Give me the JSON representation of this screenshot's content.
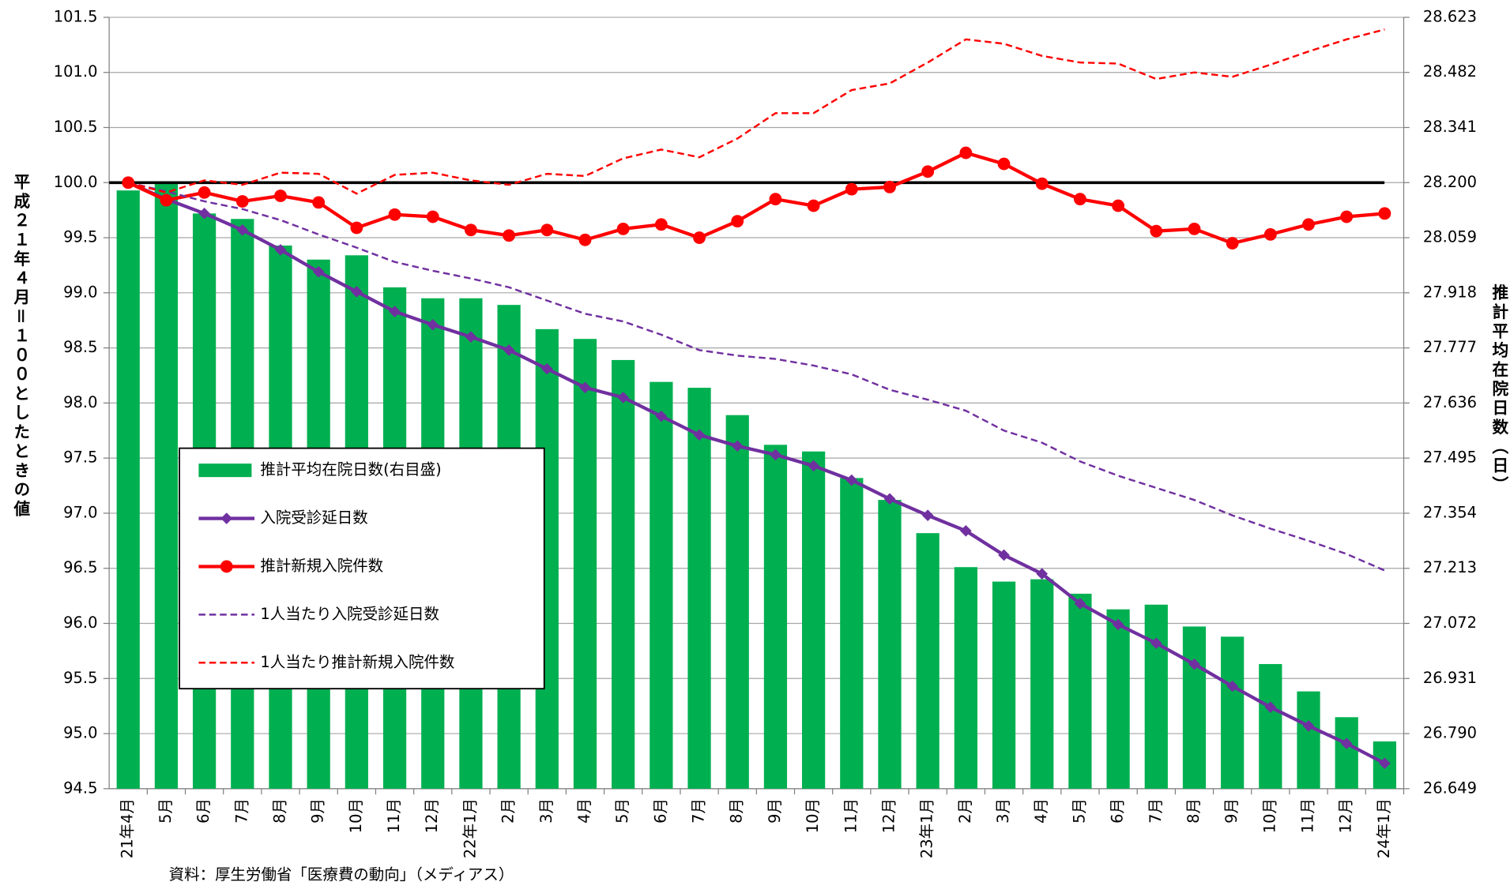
{
  "chart_data": {
    "type": "combo",
    "categories": [
      "21年4月",
      "5月",
      "6月",
      "7月",
      "8月",
      "9月",
      "10月",
      "11月",
      "12月",
      "22年1月",
      "2月",
      "3月",
      "4月",
      "5月",
      "6月",
      "7月",
      "8月",
      "9月",
      "10月",
      "11月",
      "12月",
      "23年1月",
      "2月",
      "3月",
      "4月",
      "5月",
      "6月",
      "7月",
      "8月",
      "9月",
      "10月",
      "11月",
      "12月",
      "24年1月"
    ],
    "ylabel": "平成２１年４月＝１００としたときの値",
    "y2label": "推計平均在院日数（日）",
    "note": "資料：厚生労働省「医療費の動向」（メディアス）",
    "ylim": [
      94.5,
      101.5
    ],
    "yticks": [
      94.5,
      {
        "value": 95,
        "label": "95.0"
      },
      95.5,
      {
        "value": 96,
        "label": "96.0"
      },
      96.5,
      {
        "value": 97,
        "label": "97.0"
      },
      97.5,
      {
        "value": 98,
        "label": "98.0"
      },
      98.5,
      {
        "value": 99,
        "label": "99.0"
      },
      99.5,
      {
        "value": 100,
        "label": "100.0"
      },
      100.5,
      {
        "value": 101,
        "label": "101.0"
      },
      101.5
    ],
    "y2lim": [
      26.649,
      28.623
    ],
    "y2ticks": [
      26.649,
      {
        "value": 26.79,
        "label": "26.790"
      },
      26.931,
      27.072,
      27.213,
      27.354,
      27.495,
      27.636,
      27.777,
      27.918,
      28.059,
      {
        "value": 28.2,
        "label": "28.200"
      },
      28.341,
      28.482,
      28.623
    ],
    "grid": true,
    "reference_line": 100,
    "series": [
      {
        "name": "推計平均在院日数(右目盛)",
        "type": "bar",
        "axis": "y2",
        "color": "#00b050",
        "values": [
          28.18,
          28.2,
          28.121,
          28.107,
          28.039,
          28.003,
          28.014,
          27.932,
          27.904,
          27.904,
          27.887,
          27.825,
          27.8,
          27.746,
          27.69,
          27.675,
          27.605,
          27.529,
          27.512,
          27.444,
          27.388,
          27.303,
          27.216,
          27.179,
          27.185,
          27.148,
          27.108,
          27.12,
          27.064,
          27.038,
          26.968,
          26.898,
          26.832,
          26.77
        ]
      },
      {
        "name": "入院受診延日数",
        "type": "line",
        "marker": "diamond",
        "color": "#7030a0",
        "values": [
          100.0,
          99.85,
          99.72,
          99.57,
          99.39,
          99.19,
          99.01,
          98.83,
          98.71,
          98.6,
          98.48,
          98.31,
          98.14,
          98.05,
          97.88,
          97.71,
          97.61,
          97.53,
          97.43,
          97.3,
          97.13,
          96.98,
          96.84,
          96.62,
          96.45,
          96.18,
          95.99,
          95.82,
          95.63,
          95.43,
          95.24,
          95.07,
          94.91,
          94.73
        ]
      },
      {
        "name": "推計新規入院件数",
        "type": "line",
        "marker": "circle",
        "color": "#ff0000",
        "values": [
          100.0,
          99.84,
          99.91,
          99.83,
          99.88,
          99.82,
          99.59,
          99.71,
          99.69,
          99.57,
          99.52,
          99.57,
          99.48,
          99.58,
          99.62,
          99.5,
          99.65,
          99.85,
          99.79,
          99.94,
          99.96,
          100.1,
          100.27,
          100.17,
          99.99,
          99.85,
          99.79,
          99.56,
          99.58,
          99.45,
          99.53,
          99.62,
          99.69,
          99.72
        ]
      },
      {
        "name": "1人当たり入院受診延日数",
        "type": "line",
        "dash": true,
        "color": "#7030a0",
        "values": [
          100.0,
          99.92,
          99.83,
          99.76,
          99.66,
          99.53,
          99.41,
          99.28,
          99.2,
          99.13,
          99.05,
          98.93,
          98.81,
          98.74,
          98.62,
          98.48,
          98.43,
          98.4,
          98.34,
          98.26,
          98.12,
          98.03,
          97.93,
          97.75,
          97.64,
          97.47,
          97.34,
          97.23,
          97.12,
          96.98,
          96.86,
          96.75,
          96.63,
          96.48
        ]
      },
      {
        "name": "1人当たり推計新規入院件数",
        "type": "line",
        "dash": true,
        "color": "#ff0000",
        "values": [
          100.0,
          99.91,
          100.02,
          99.98,
          100.09,
          100.08,
          99.9,
          100.07,
          100.09,
          100.02,
          99.98,
          100.08,
          100.06,
          100.22,
          100.3,
          100.23,
          100.4,
          100.63,
          100.63,
          100.84,
          100.9,
          101.09,
          101.3,
          101.26,
          101.15,
          101.09,
          101.08,
          100.94,
          101.0,
          100.96,
          101.07,
          101.19,
          101.3,
          101.39
        ]
      }
    ]
  }
}
